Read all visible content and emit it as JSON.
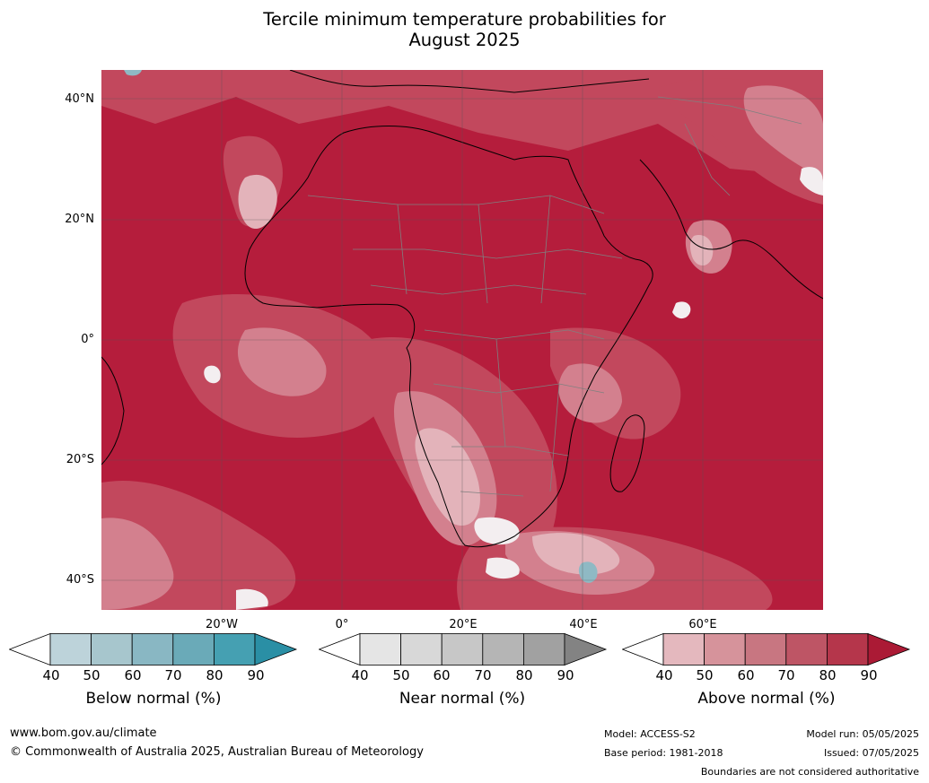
{
  "title_line1": "Tercile minimum temperature probabilities for",
  "title_line2": "August 2025",
  "lat_labels": [
    "40°N",
    "20°N",
    "0°",
    "20°S",
    "40°S"
  ],
  "lon_labels": [
    "20°W",
    "0°",
    "20°E",
    "40°E",
    "60°E"
  ],
  "colorbars": [
    {
      "label": "Below normal (%)",
      "ticks": [
        "40",
        "50",
        "60",
        "70",
        "80",
        "90"
      ],
      "colors": [
        "#ffffff",
        "#bdd3da",
        "#a7c6cd",
        "#89b7c3",
        "#6aaab8",
        "#45a0b2",
        "#2a8fa5"
      ]
    },
    {
      "label": "Near normal (%)",
      "ticks": [
        "40",
        "50",
        "60",
        "70",
        "80",
        "90"
      ],
      "colors": [
        "#ffffff",
        "#e5e5e5",
        "#d8d8d8",
        "#c7c7c7",
        "#b5b5b5",
        "#a1a1a1",
        "#838383"
      ]
    },
    {
      "label": "Above normal (%)",
      "ticks": [
        "40",
        "50",
        "60",
        "70",
        "80",
        "90"
      ],
      "colors": [
        "#ffffff",
        "#e4b8be",
        "#d6939b",
        "#c87681",
        "#be5565",
        "#b5364b",
        "#ab1a35"
      ]
    }
  ],
  "footer": {
    "url": "www.bom.gov.au/climate",
    "copyright": "© Commonwealth of Australia 2025, Australian Bureau of Meteorology",
    "model": "Model: ACCESS-S2",
    "base_period": "Base period: 1981-2018",
    "model_run": "Model run: 05/05/2025",
    "issued": "Issued: 07/05/2025",
    "disclaimer": "Boundaries are not considered authoritative"
  },
  "map_colors": {
    "dominant": "#b51d3c",
    "mid": "#c2485d",
    "light": "#d3808e",
    "pale": "#e3b3ba",
    "white": "#f3eef0",
    "blue": "#8fb9c4",
    "coast": "#000000",
    "border": "#808080"
  }
}
